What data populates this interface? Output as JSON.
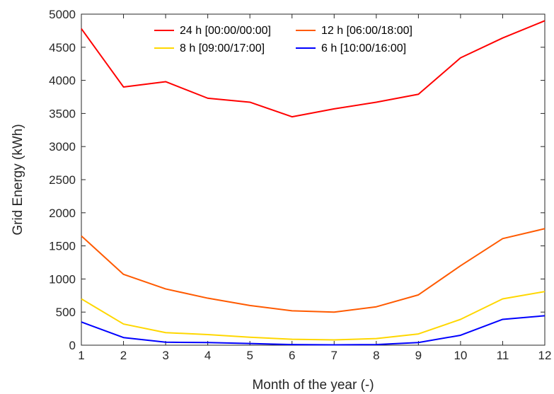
{
  "chart_data": {
    "type": "line",
    "title": "",
    "xlabel": "Month of the year (-)",
    "ylabel": "Grid Energy (kWh)",
    "x": [
      1,
      2,
      3,
      4,
      5,
      6,
      7,
      8,
      9,
      10,
      11,
      12
    ],
    "xlim": [
      1,
      12
    ],
    "ylim": [
      0,
      5000
    ],
    "xticks": [
      "1",
      "2",
      "3",
      "4",
      "5",
      "6",
      "7",
      "8",
      "9",
      "10",
      "11",
      "12"
    ],
    "yticks": [
      "0",
      "500",
      "1000",
      "1500",
      "2000",
      "2500",
      "3000",
      "3500",
      "4000",
      "4500",
      "5000"
    ],
    "grid": false,
    "legend_position": "top",
    "series": [
      {
        "name": "24 h [00:00/00:00]",
        "color": "#ff0000",
        "values": [
          4780,
          3900,
          3980,
          3730,
          3670,
          3450,
          3570,
          3670,
          3790,
          4340,
          4640,
          4900
        ]
      },
      {
        "name": "12 h [06:00/18:00]",
        "color": "#ff5a00",
        "values": [
          1650,
          1070,
          850,
          710,
          600,
          520,
          500,
          580,
          760,
          1200,
          1610,
          1760
        ]
      },
      {
        "name": "8 h [09:00/17:00]",
        "color": "#ffd700",
        "values": [
          700,
          320,
          190,
          160,
          120,
          90,
          80,
          100,
          170,
          390,
          700,
          810
        ]
      },
      {
        "name": "6 h [10:00/16:00]",
        "color": "#0000ff",
        "values": [
          350,
          115,
          45,
          40,
          25,
          10,
          5,
          10,
          40,
          150,
          390,
          445
        ]
      }
    ]
  }
}
